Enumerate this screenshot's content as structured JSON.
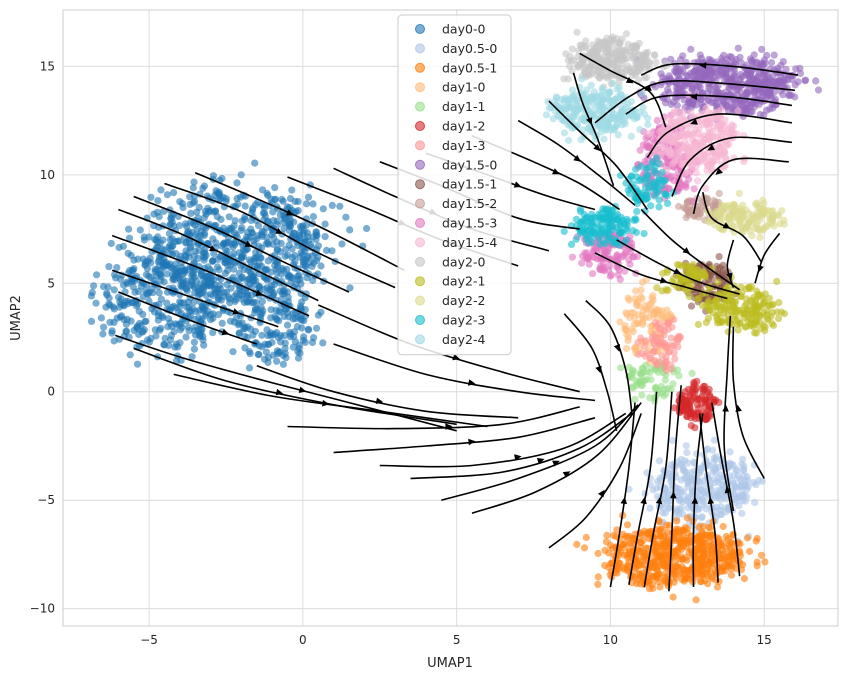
{
  "chart_data": {
    "type": "scatter",
    "title": "",
    "xlabel": "UMAP1",
    "ylabel": "UMAP2",
    "xlim": [
      -7.8,
      17.4
    ],
    "ylim": [
      -10.8,
      17.6
    ],
    "xticks": [
      -5,
      0,
      5,
      10,
      15
    ],
    "yticks": [
      -10,
      -5,
      0,
      5,
      10,
      15
    ],
    "xtick_labels": [
      "−5",
      "0",
      "5",
      "10",
      "15"
    ],
    "ytick_labels": [
      "−10",
      "−5",
      "0",
      "5",
      "10",
      "15"
    ],
    "grid": true,
    "legend_position": "upper-center",
    "series": [
      {
        "name": "day0-0",
        "color": "#1f77b4",
        "clusters": [
          {
            "cx": -2.1,
            "cy": 6.7,
            "rx": 2.7,
            "ry": 2.6,
            "n": 700
          },
          {
            "cx": -4.6,
            "cy": 4.1,
            "rx": 1.9,
            "ry": 2.0,
            "n": 320
          },
          {
            "cx": -0.9,
            "cy": 2.9,
            "rx": 1.2,
            "ry": 1.6,
            "n": 140
          }
        ]
      },
      {
        "name": "day0.5-0",
        "color": "#aec7e8",
        "clusters": [
          {
            "cx": 13.0,
            "cy": -4.4,
            "rx": 1.5,
            "ry": 1.5,
            "n": 320
          }
        ]
      },
      {
        "name": "day0.5-1",
        "color": "#ff7f0e",
        "clusters": [
          {
            "cx": 12.0,
            "cy": -7.6,
            "rx": 2.1,
            "ry": 1.3,
            "n": 560
          }
        ]
      },
      {
        "name": "day1-0",
        "color": "#ffbb78",
        "clusters": [
          {
            "cx": 11.2,
            "cy": 3.1,
            "rx": 0.8,
            "ry": 1.4,
            "n": 100
          }
        ]
      },
      {
        "name": "day1-1",
        "color": "#98df8a",
        "clusters": [
          {
            "cx": 11.4,
            "cy": 0.6,
            "rx": 0.8,
            "ry": 0.9,
            "n": 70
          }
        ]
      },
      {
        "name": "day1-2",
        "color": "#d62728",
        "clusters": [
          {
            "cx": 12.8,
            "cy": -0.6,
            "rx": 0.6,
            "ry": 0.8,
            "n": 110
          }
        ]
      },
      {
        "name": "day1-3",
        "color": "#ff9896",
        "clusters": [
          {
            "cx": 11.7,
            "cy": 2.2,
            "rx": 0.6,
            "ry": 1.1,
            "n": 70
          }
        ]
      },
      {
        "name": "day1.5-0",
        "color": "#9467bd",
        "clusters": [
          {
            "cx": 13.8,
            "cy": 14.2,
            "rx": 2.0,
            "ry": 1.2,
            "n": 520
          }
        ]
      },
      {
        "name": "day1.5-1",
        "color": "#8c564b",
        "clusters": [
          {
            "cx": 13.1,
            "cy": 5.0,
            "rx": 0.8,
            "ry": 0.9,
            "n": 120
          }
        ]
      },
      {
        "name": "day1.5-2",
        "color": "#c49c94",
        "clusters": [
          {
            "cx": 13.1,
            "cy": 8.4,
            "rx": 0.7,
            "ry": 0.5,
            "n": 60
          }
        ]
      },
      {
        "name": "day1.5-3",
        "color": "#e377c2",
        "clusters": [
          {
            "cx": 11.8,
            "cy": 10.6,
            "rx": 0.9,
            "ry": 1.6,
            "n": 170
          },
          {
            "cx": 10.0,
            "cy": 6.4,
            "rx": 0.8,
            "ry": 0.9,
            "n": 130
          }
        ]
      },
      {
        "name": "day1.5-4",
        "color": "#f7b6d2",
        "clusters": [
          {
            "cx": 12.9,
            "cy": 11.7,
            "rx": 1.3,
            "ry": 1.4,
            "n": 260
          }
        ]
      },
      {
        "name": "day2-0",
        "color": "#c7c7c7",
        "clusters": [
          {
            "cx": 10.0,
            "cy": 15.3,
            "rx": 1.2,
            "ry": 0.9,
            "n": 270
          }
        ]
      },
      {
        "name": "day2-1",
        "color": "#bcbd22",
        "clusters": [
          {
            "cx": 14.2,
            "cy": 3.9,
            "rx": 1.1,
            "ry": 1.0,
            "n": 190
          },
          {
            "cx": 12.4,
            "cy": 5.3,
            "rx": 0.7,
            "ry": 0.6,
            "n": 60
          }
        ]
      },
      {
        "name": "day2-2",
        "color": "#dbdb8d",
        "clusters": [
          {
            "cx": 14.3,
            "cy": 8.0,
            "rx": 1.1,
            "ry": 0.7,
            "n": 140
          }
        ]
      },
      {
        "name": "day2-3",
        "color": "#17becf",
        "clusters": [
          {
            "cx": 9.8,
            "cy": 7.6,
            "rx": 0.9,
            "ry": 0.8,
            "n": 140
          },
          {
            "cx": 11.2,
            "cy": 9.5,
            "rx": 0.7,
            "ry": 1.0,
            "n": 80
          }
        ]
      },
      {
        "name": "day2-4",
        "color": "#9edae5",
        "clusters": [
          {
            "cx": 9.6,
            "cy": 12.9,
            "rx": 1.3,
            "ry": 1.0,
            "n": 260
          }
        ]
      }
    ],
    "streamlines": [
      [
        [
          -6.0,
          8.4
        ],
        [
          -4.0,
          7.3
        ],
        [
          -1.8,
          5.8
        ],
        [
          0.5,
          4.2
        ]
      ],
      [
        [
          -5.5,
          9.0
        ],
        [
          -3.0,
          7.6
        ],
        [
          -0.5,
          5.9
        ],
        [
          1.5,
          4.6
        ]
      ],
      [
        [
          -4.5,
          9.6
        ],
        [
          -2.0,
          8.3
        ],
        [
          0.5,
          6.4
        ],
        [
          3.0,
          4.8
        ]
      ],
      [
        [
          -3.5,
          10.1
        ],
        [
          -1.5,
          8.9
        ],
        [
          0.7,
          7.5
        ],
        [
          3.3,
          5.6
        ]
      ],
      [
        [
          -6.2,
          5.6
        ],
        [
          -3.5,
          4.3
        ],
        [
          -0.8,
          3.0
        ]
      ],
      [
        [
          -6.0,
          4.6
        ],
        [
          -3.5,
          3.2
        ],
        [
          -1.5,
          2.2
        ]
      ],
      [
        [
          -6.2,
          7.2
        ],
        [
          -3.0,
          5.5
        ],
        [
          0.2,
          3.5
        ]
      ],
      [
        [
          -6.1,
          2.6
        ],
        [
          -4.0,
          1.6
        ],
        [
          -1.5,
          0.6
        ],
        [
          1.5,
          -0.5
        ],
        [
          5.0,
          -1.8
        ]
      ],
      [
        [
          -5.5,
          2.0
        ],
        [
          -2.5,
          0.5
        ],
        [
          1.0,
          -0.6
        ],
        [
          5.0,
          -1.5
        ]
      ],
      [
        [
          -4.2,
          0.8
        ],
        [
          -1.0,
          -0.2
        ],
        [
          2.5,
          -0.9
        ],
        [
          6.0,
          -1.6
        ]
      ],
      [
        [
          -0.5,
          9.9
        ],
        [
          2.0,
          8.5
        ],
        [
          4.5,
          7.0
        ],
        [
          7.0,
          5.8
        ]
      ],
      [
        [
          1.0,
          10.3
        ],
        [
          3.0,
          9.0
        ],
        [
          5.5,
          7.5
        ],
        [
          8.0,
          6.5
        ]
      ],
      [
        [
          2.5,
          10.6
        ],
        [
          4.5,
          9.5
        ],
        [
          7.0,
          8.0
        ],
        [
          9.0,
          7.5
        ]
      ],
      [
        [
          4.0,
          11.0
        ],
        [
          6.0,
          10.0
        ],
        [
          8.0,
          9.0
        ],
        [
          9.5,
          8.4
        ]
      ],
      [
        [
          5.5,
          11.8
        ],
        [
          7.5,
          10.6
        ],
        [
          9.0,
          9.6
        ],
        [
          10.3,
          8.4
        ]
      ],
      [
        [
          7.0,
          12.5
        ],
        [
          8.3,
          11.4
        ],
        [
          9.6,
          10.0
        ],
        [
          10.8,
          8.6
        ]
      ],
      [
        [
          8.0,
          13.4
        ],
        [
          9.0,
          12.0
        ],
        [
          10.2,
          10.4
        ],
        [
          11.2,
          8.4
        ]
      ],
      [
        [
          -1.5,
          1.2
        ],
        [
          1.0,
          0.0
        ],
        [
          4.0,
          -0.9
        ],
        [
          7.0,
          -1.2
        ]
      ],
      [
        [
          0.5,
          4.0
        ],
        [
          3.5,
          2.2
        ],
        [
          6.5,
          0.9
        ],
        [
          9.0,
          0.0
        ]
      ],
      [
        [
          1.0,
          2.2
        ],
        [
          4.0,
          0.8
        ],
        [
          7.0,
          0.0
        ],
        [
          9.5,
          -0.4
        ]
      ],
      [
        [
          -0.5,
          -1.6
        ],
        [
          3.0,
          -1.7
        ],
        [
          6.5,
          -1.5
        ],
        [
          9.0,
          -0.7
        ]
      ],
      [
        [
          1.0,
          -2.8
        ],
        [
          4.0,
          -2.5
        ],
        [
          7.0,
          -2.1
        ],
        [
          9.5,
          -1.2
        ]
      ],
      [
        [
          2.5,
          -3.4
        ],
        [
          5.5,
          -3.4
        ],
        [
          8.5,
          -2.6
        ],
        [
          10.5,
          -1.0
        ]
      ],
      [
        [
          3.5,
          -4.0
        ],
        [
          6.5,
          -3.7
        ],
        [
          9.0,
          -2.6
        ],
        [
          10.7,
          -1.0
        ]
      ],
      [
        [
          4.5,
          -5.0
        ],
        [
          7.0,
          -4.0
        ],
        [
          9.5,
          -2.5
        ],
        [
          10.9,
          -0.6
        ]
      ],
      [
        [
          5.5,
          -5.6
        ],
        [
          7.6,
          -4.6
        ],
        [
          9.6,
          -2.9
        ],
        [
          11.0,
          -0.5
        ]
      ],
      [
        [
          8.0,
          -7.2
        ],
        [
          9.2,
          -5.8
        ],
        [
          10.3,
          -3.5
        ],
        [
          11.0,
          -1.0
        ]
      ],
      [
        [
          10.6,
          -8.9
        ],
        [
          10.9,
          -6.5
        ],
        [
          11.3,
          -3.5
        ],
        [
          11.5,
          0.0
        ]
      ],
      [
        [
          11.1,
          -9.0
        ],
        [
          11.4,
          -6.5
        ],
        [
          11.8,
          -3.5
        ],
        [
          12.0,
          0.0
        ]
      ],
      [
        [
          11.9,
          -9.2
        ],
        [
          12.0,
          -6.5
        ],
        [
          12.1,
          -3.0
        ],
        [
          12.3,
          0.3
        ]
      ],
      [
        [
          12.7,
          -9.0
        ],
        [
          12.7,
          -6.5
        ],
        [
          12.8,
          -3.5
        ],
        [
          13.0,
          -1.0
        ]
      ],
      [
        [
          13.5,
          -8.8
        ],
        [
          13.4,
          -6.5
        ],
        [
          13.1,
          -3.5
        ],
        [
          12.9,
          -1.0
        ]
      ],
      [
        [
          14.2,
          -8.5
        ],
        [
          14.0,
          -6.0
        ],
        [
          13.6,
          -3.0
        ],
        [
          13.3,
          -0.5
        ]
      ],
      [
        [
          10.0,
          -9.0
        ],
        [
          10.3,
          -6.5
        ],
        [
          10.6,
          -3.5
        ],
        [
          10.8,
          -0.5
        ]
      ],
      [
        [
          15.0,
          -4.0
        ],
        [
          14.3,
          -2.0
        ],
        [
          14.0,
          0.5
        ],
        [
          14.0,
          3.0
        ]
      ],
      [
        [
          14.0,
          -5.5
        ],
        [
          13.7,
          -2.5
        ],
        [
          13.8,
          1.0
        ],
        [
          13.9,
          3.5
        ]
      ],
      [
        [
          16.1,
          14.6
        ],
        [
          14.0,
          15.0
        ],
        [
          12.0,
          15.1
        ],
        [
          11.0,
          14.6
        ]
      ],
      [
        [
          16.0,
          13.9
        ],
        [
          13.8,
          14.2
        ],
        [
          11.8,
          14.3
        ],
        [
          10.6,
          13.6
        ],
        [
          9.5,
          12.4
        ]
      ],
      [
        [
          15.9,
          13.2
        ],
        [
          13.8,
          13.6
        ],
        [
          11.6,
          13.6
        ],
        [
          10.5,
          12.8
        ]
      ],
      [
        [
          15.9,
          12.4
        ],
        [
          13.5,
          12.8
        ],
        [
          11.9,
          12.0
        ],
        [
          11.2,
          10.8
        ]
      ],
      [
        [
          15.9,
          11.5
        ],
        [
          13.9,
          11.7
        ],
        [
          12.6,
          10.7
        ],
        [
          12.0,
          9.0
        ]
      ],
      [
        [
          15.8,
          10.6
        ],
        [
          14.0,
          10.7
        ],
        [
          13.0,
          9.5
        ],
        [
          12.7,
          8.2
        ]
      ],
      [
        [
          13.0,
          9.2
        ],
        [
          13.3,
          8.0
        ],
        [
          14.3,
          7.2
        ],
        [
          14.9,
          6.0
        ]
      ],
      [
        [
          8.8,
          14.7
        ],
        [
          9.1,
          13.3
        ],
        [
          9.6,
          11.6
        ],
        [
          10.1,
          9.5
        ]
      ],
      [
        [
          9.0,
          15.6
        ],
        [
          10.0,
          14.8
        ],
        [
          11.3,
          13.8
        ],
        [
          11.8,
          12.2
        ]
      ],
      [
        [
          11.0,
          8.4
        ],
        [
          12.0,
          7.0
        ],
        [
          13.0,
          5.9
        ],
        [
          14.2,
          4.7
        ]
      ],
      [
        [
          10.2,
          7.0
        ],
        [
          11.6,
          5.9
        ],
        [
          12.8,
          5.1
        ],
        [
          14.2,
          4.5
        ]
      ],
      [
        [
          9.5,
          6.4
        ],
        [
          11.0,
          5.4
        ],
        [
          12.5,
          4.8
        ],
        [
          13.8,
          4.3
        ]
      ],
      [
        [
          14.0,
          7.0
        ],
        [
          13.8,
          5.8
        ],
        [
          14.0,
          4.8
        ]
      ],
      [
        [
          15.5,
          7.3
        ],
        [
          15.0,
          6.3
        ],
        [
          14.7,
          5.0
        ]
      ],
      [
        [
          9.2,
          4.2
        ],
        [
          10.0,
          3.0
        ],
        [
          10.5,
          1.0
        ],
        [
          10.7,
          -1.0
        ]
      ],
      [
        [
          8.5,
          3.6
        ],
        [
          9.4,
          2.0
        ],
        [
          9.9,
          0.0
        ],
        [
          10.2,
          -1.8
        ]
      ]
    ]
  }
}
